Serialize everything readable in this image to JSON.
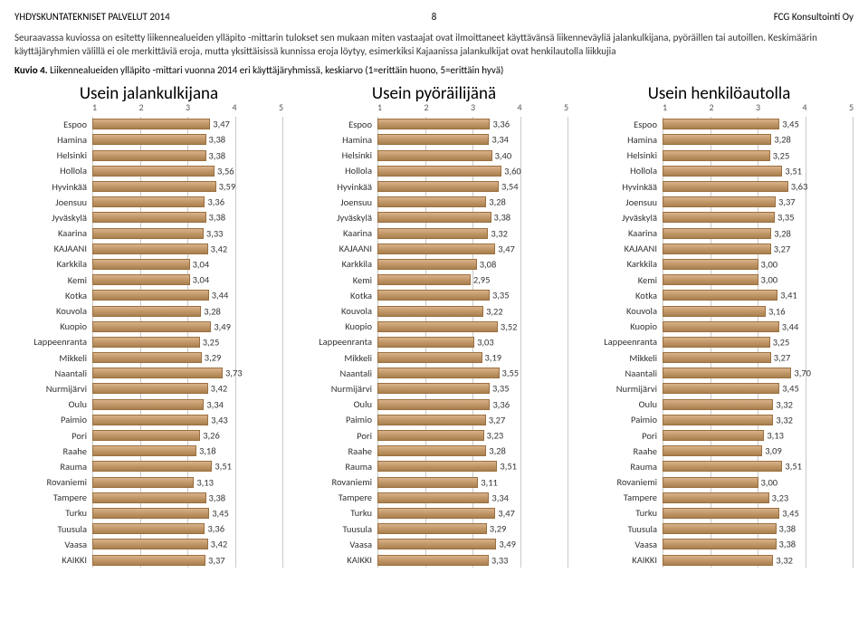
{
  "header": {
    "left": "YHDYSKUNTATEKNISET PALVELUT 2014",
    "page": "8",
    "right": "FCG Konsultointi Oy"
  },
  "intro": "Seuraavassa kuviossa on esitetty liikennealueiden ylläpito -mittarin tulokset sen mukaan miten vastaajat ovat ilmoittaneet käyttävänsä liikenneväyliä jalankulkijana, pyöräillen tai autoillen. Keskimäärin käyttäjäryhmien välillä ei ole merkittäviä eroja, mutta yksittäisissä kunnissa eroja löytyy, esimerkiksi Kajaanissa jalankulkijat ovat henkilautolla liikkujia",
  "kuvio": {
    "label": "Kuvio 4.",
    "text": "Liikennealueiden ylläpito -mittari vuonna 2014 eri käyttäjäryhmissä, keskiarvo (1=erittäin huono, 5=erittäin hyvä)"
  },
  "axis": {
    "min": 1,
    "max": 5,
    "ticks": [
      "1",
      "2",
      "3",
      "4",
      "5"
    ]
  },
  "labels": [
    "Espoo",
    "Hamina",
    "Helsinki",
    "Hollola",
    "Hyvinkää",
    "Joensuu",
    "Jyväskylä",
    "Kaarina",
    "KAJAANI",
    "Karkkila",
    "Kemi",
    "Kotka",
    "Kouvola",
    "Kuopio",
    "Lappeenranta",
    "Mikkeli",
    "Naantali",
    "Nurmijärvi",
    "Oulu",
    "Paimio",
    "Pori",
    "Raahe",
    "Rauma",
    "Rovaniemi",
    "Tampere",
    "Turku",
    "Tuusula",
    "Vaasa",
    "KAIKKI"
  ],
  "charts": [
    {
      "title": "Usein jalankulkijana",
      "values": [
        3.47,
        3.38,
        3.38,
        3.56,
        3.59,
        3.36,
        3.38,
        3.33,
        3.42,
        3.04,
        3.04,
        3.44,
        3.28,
        3.49,
        3.25,
        3.29,
        3.73,
        3.42,
        3.34,
        3.43,
        3.26,
        3.18,
        3.51,
        3.13,
        3.38,
        3.45,
        3.36,
        3.42,
        3.37
      ],
      "display": [
        "3,47",
        "3,38",
        "3,38",
        "3,56",
        "3,59",
        "3,36",
        "3,38",
        "3,33",
        "3,42",
        "3,04",
        "3,04",
        "3,44",
        "3,28",
        "3,49",
        "3,25",
        "3,29",
        "3,73",
        "3,42",
        "3,34",
        "3,43",
        "3,26",
        "3,18",
        "3,51",
        "3,13",
        "3,38",
        "3,45",
        "3,36",
        "3,42",
        "3,37"
      ]
    },
    {
      "title": "Usein pyöräilijänä",
      "values": [
        3.36,
        3.34,
        3.4,
        3.6,
        3.54,
        3.28,
        3.38,
        3.32,
        3.47,
        3.08,
        2.95,
        3.35,
        3.22,
        3.52,
        3.03,
        3.19,
        3.55,
        3.35,
        3.36,
        3.27,
        3.23,
        3.28,
        3.51,
        3.11,
        3.34,
        3.47,
        3.29,
        3.49,
        3.33
      ],
      "display": [
        "3,36",
        "3,34",
        "3,40",
        "3,60",
        "3,54",
        "3,28",
        "3,38",
        "3,32",
        "3,47",
        "3,08",
        "2,95",
        "3,35",
        "3,22",
        "3,52",
        "3,03",
        "3,19",
        "3,55",
        "3,35",
        "3,36",
        "3,27",
        "3,23",
        "3,28",
        "3,51",
        "3,11",
        "3,34",
        "3,47",
        "3,29",
        "3,49",
        "3,33"
      ]
    },
    {
      "title": "Usein henkilöautolla",
      "values": [
        3.45,
        3.28,
        3.25,
        3.51,
        3.63,
        3.37,
        3.35,
        3.28,
        3.27,
        3.0,
        3.0,
        3.41,
        3.16,
        3.44,
        3.25,
        3.27,
        3.7,
        3.45,
        3.32,
        3.32,
        3.13,
        3.09,
        3.51,
        3.0,
        3.23,
        3.45,
        3.38,
        3.38,
        3.32
      ],
      "display": [
        "3,45",
        "3,28",
        "3,25",
        "3,51",
        "3,63",
        "3,37",
        "3,35",
        "3,28",
        "3,27",
        "3,00",
        "3,00",
        "3,41",
        "3,16",
        "3,44",
        "3,25",
        "3,27",
        "3,70",
        "3,45",
        "3,32",
        "3,32",
        "3,13",
        "3,09",
        "3,51",
        "3,00",
        "3,23",
        "3,45",
        "3,38",
        "3,38",
        "3,32"
      ]
    }
  ],
  "colors": {
    "bar_start": "#d9b38c",
    "bar_mid": "#c49a6c",
    "bar_end": "#a9804e",
    "bar_border": "#9b6f3e",
    "grid": "#c9c9c9",
    "text": "#333333"
  }
}
